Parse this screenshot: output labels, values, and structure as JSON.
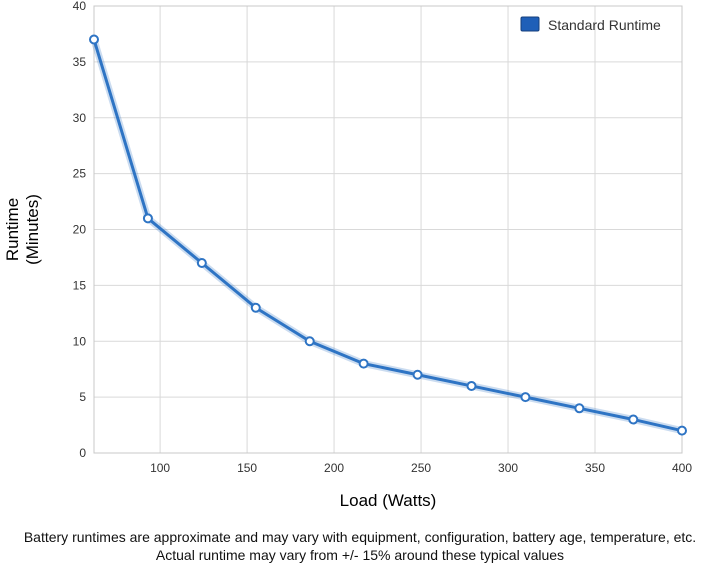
{
  "chart_data": {
    "type": "line",
    "xlabel": "Load (Watts)",
    "ylabel_lines": [
      "Runtime",
      "(Minutes)"
    ],
    "xlim": [
      62,
      400
    ],
    "ylim": [
      0,
      40
    ],
    "x_ticks": [
      100,
      150,
      200,
      250,
      300,
      350,
      400
    ],
    "y_ticks": [
      0,
      5,
      10,
      15,
      20,
      25,
      30,
      35,
      40
    ],
    "grid": true,
    "legend_position": "top-right",
    "series": [
      {
        "name": "Standard Runtime",
        "color": "#2E74C4",
        "x": [
          62,
          93,
          124,
          155,
          186,
          217,
          248,
          279,
          310,
          341,
          372,
          400
        ],
        "y": [
          37,
          21,
          17,
          13,
          10,
          8,
          7,
          6,
          5,
          4,
          3,
          2
        ]
      }
    ]
  },
  "footnote": {
    "line1": "Battery runtimes are approximate and may vary with equipment, configuration, battery age, temperature, etc.",
    "line2": "Actual runtime may vary from +/- 15% around these typical values"
  }
}
